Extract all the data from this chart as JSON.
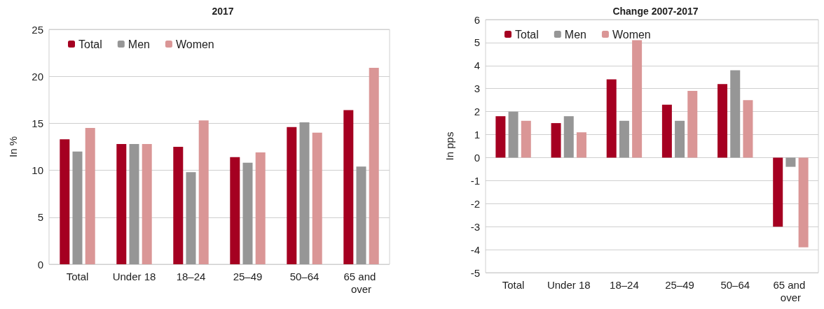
{
  "chart_data": [
    {
      "type": "bar",
      "title": "2017",
      "ylabel": "In %",
      "categories": [
        "Total",
        "Under 18",
        "18–24",
        "25–49",
        "50–64",
        "65 and over"
      ],
      "series": [
        {
          "name": "Total",
          "color": "#a50021",
          "values": [
            13.3,
            12.8,
            12.5,
            11.4,
            14.6,
            16.4
          ]
        },
        {
          "name": "Men",
          "color": "#969696",
          "values": [
            12.0,
            12.8,
            9.8,
            10.8,
            15.1,
            10.4
          ]
        },
        {
          "name": "Women",
          "color": "#da9696",
          "values": [
            14.5,
            12.8,
            15.3,
            11.9,
            14.0,
            20.9
          ]
        }
      ],
      "ylim": [
        0,
        25
      ],
      "yticks": [
        0,
        5,
        10,
        15,
        20,
        25
      ],
      "grid": "y",
      "legend": "top left"
    },
    {
      "type": "bar",
      "title": "Change 2007-2017",
      "ylabel": "In pps",
      "categories": [
        "Total",
        "Under 18",
        "18–24",
        "25–49",
        "50–64",
        "65 and over"
      ],
      "series": [
        {
          "name": "Total",
          "color": "#a50021",
          "values": [
            1.8,
            1.5,
            3.4,
            2.3,
            3.2,
            -3.0
          ]
        },
        {
          "name": "Men",
          "color": "#969696",
          "values": [
            2.0,
            1.8,
            1.6,
            1.6,
            3.8,
            -0.4
          ]
        },
        {
          "name": "Women",
          "color": "#da9696",
          "values": [
            1.6,
            1.1,
            5.1,
            2.9,
            2.5,
            -3.9
          ]
        }
      ],
      "ylim": [
        -5,
        6
      ],
      "yticks": [
        -5,
        -4,
        -3,
        -2,
        -1,
        0,
        1,
        2,
        3,
        4,
        5,
        6
      ],
      "grid": "y",
      "legend": "top left"
    }
  ]
}
